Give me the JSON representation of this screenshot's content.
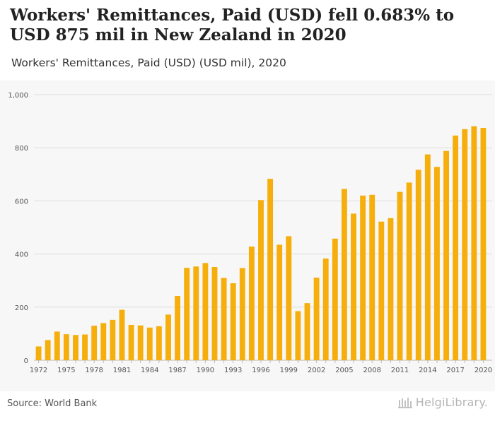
{
  "header": {
    "title": "Workers' Remittances, Paid (USD) fell 0.683% to USD 875 mil in New Zealand in 2020",
    "subtitle": "Workers' Remittances, Paid (USD) (USD mil), 2020"
  },
  "footer": {
    "source": "Source: World Bank",
    "brand": "HelgiLibrary."
  },
  "colors": {
    "bar": "#f5ae0b",
    "grid": "#dddddd",
    "axis_text": "#555555",
    "background": "#f7f7f7"
  },
  "chart_data": {
    "type": "bar",
    "x": [
      1972,
      1973,
      1974,
      1975,
      1976,
      1977,
      1978,
      1979,
      1980,
      1981,
      1982,
      1983,
      1984,
      1985,
      1986,
      1987,
      1988,
      1989,
      1990,
      1991,
      1992,
      1993,
      1994,
      1995,
      1996,
      1997,
      1998,
      1999,
      2000,
      2001,
      2002,
      2003,
      2004,
      2005,
      2006,
      2007,
      2008,
      2009,
      2010,
      2011,
      2012,
      2013,
      2014,
      2015,
      2016,
      2017,
      2018,
      2019,
      2020
    ],
    "values": [
      52,
      76,
      108,
      98,
      95,
      97,
      130,
      140,
      152,
      190,
      133,
      131,
      123,
      128,
      172,
      242,
      348,
      353,
      366,
      351,
      310,
      290,
      347,
      428,
      603,
      683,
      435,
      467,
      185,
      215,
      311,
      383,
      458,
      645,
      552,
      620,
      623,
      522,
      535,
      634,
      669,
      717,
      775,
      728,
      788,
      846,
      870,
      881,
      875
    ],
    "x_tick_labels": [
      "1972",
      "1975",
      "1978",
      "1981",
      "1984",
      "1987",
      "1990",
      "1993",
      "1996",
      "1999",
      "2002",
      "2005",
      "2008",
      "2011",
      "2014",
      "2017",
      "2020"
    ],
    "y_ticks": [
      0,
      200,
      400,
      600,
      800,
      1000
    ],
    "y_tick_labels": [
      "0",
      "200",
      "400",
      "600",
      "800",
      "1,000"
    ],
    "ylim": [
      0,
      1000
    ],
    "grid": true
  }
}
